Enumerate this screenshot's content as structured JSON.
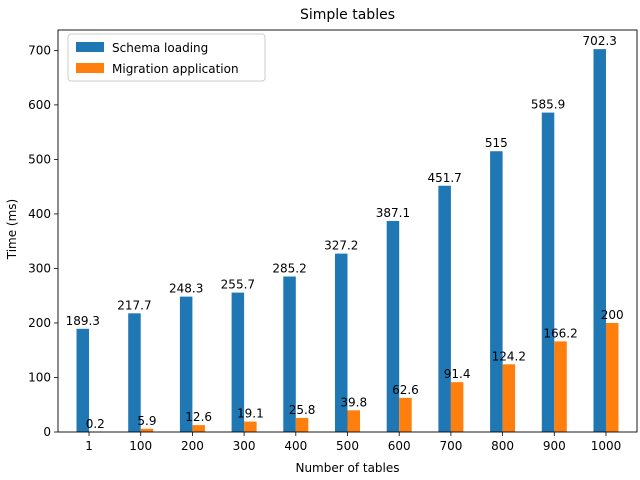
{
  "chart_data": {
    "type": "bar",
    "title": "Simple tables",
    "xlabel": "Number of tables",
    "ylabel": "Time (ms)",
    "categories": [
      "1",
      "100",
      "200",
      "300",
      "400",
      "500",
      "600",
      "700",
      "800",
      "900",
      "1000"
    ],
    "ylim": [
      0,
      737.4
    ],
    "yticks": [
      0,
      100,
      200,
      300,
      400,
      500,
      600,
      700
    ],
    "grid": false,
    "legend_position": "top-left",
    "series": [
      {
        "name": "Schema loading",
        "color": "#1f77b4",
        "values": [
          189.3,
          217.7,
          248.3,
          255.7,
          285.2,
          327.2,
          387.1,
          451.7,
          515,
          585.9,
          702.3
        ],
        "labels": [
          "189.3",
          "217.7",
          "248.3",
          "255.7",
          "285.2",
          "327.2",
          "387.1",
          "451.7",
          "515",
          "585.9",
          "702.3"
        ]
      },
      {
        "name": "Migration application",
        "color": "#ff7f0e",
        "values": [
          0.2,
          5.9,
          12.6,
          19.1,
          25.8,
          39.8,
          62.6,
          91.4,
          124.2,
          166.2,
          200
        ],
        "labels": [
          "0.2",
          "5.9",
          "12.6",
          "19.1",
          "25.8",
          "39.8",
          "62.6",
          "91.4",
          "124.2",
          "166.2",
          "200"
        ]
      }
    ]
  }
}
